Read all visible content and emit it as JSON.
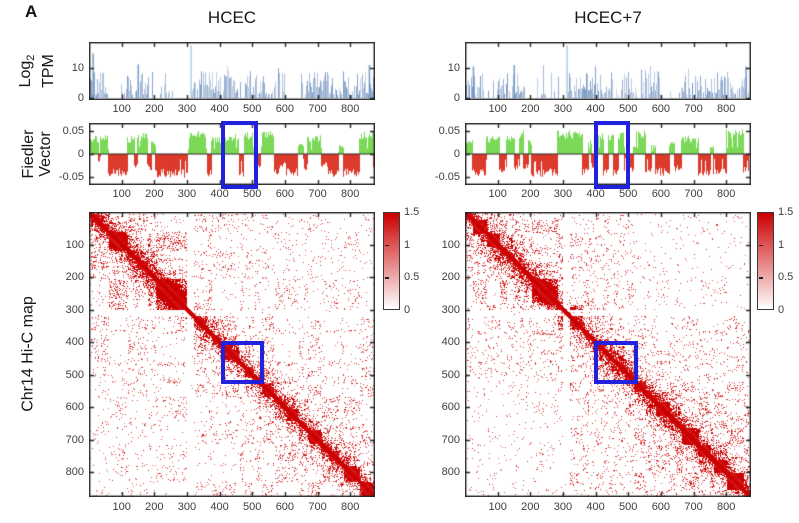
{
  "panel_label": "A",
  "columns": [
    {
      "title": "HCEC"
    },
    {
      "title": "HCEC+7"
    }
  ],
  "row_labels": {
    "tpm": {
      "line1": "Log",
      "line1_sub": "2",
      "line2": "TPM"
    },
    "fiedler": {
      "line1": "Fiedler",
      "line2": "Vector"
    },
    "hic": {
      "label": "Chr14 Hi-C map"
    }
  },
  "colors": {
    "bar_blue": "#5E8FC6",
    "bar_blue_light": "#ADCDE6",
    "fiedler_positive": "#7BD957",
    "fiedler_negative": "#DC3A2B",
    "hic_red": "#CB0000",
    "highlight_blue": "#2222DE",
    "axis": "#262626",
    "tick_text": "#3D3D3D"
  },
  "chart_data": [
    {
      "id": "tpm_hcec",
      "type": "bar",
      "title": "HCEC",
      "ylabel": "Log2 TPM",
      "xlim": [
        0,
        876
      ],
      "ylim": [
        0,
        18
      ],
      "x_ticks": [
        100,
        200,
        300,
        400,
        500,
        600,
        700,
        800
      ],
      "y_ticks": [
        0,
        10
      ],
      "bar_color": "#5E8FC6",
      "seed": 101,
      "sparse_regions": [
        [
          57,
          97
        ],
        [
          186,
          216
        ],
        [
          248,
          310
        ],
        [
          452,
          475
        ],
        [
          598,
          648
        ]
      ],
      "tall_spikes": [
        [
          12,
          14.8
        ],
        [
          150,
          11.2
        ],
        [
          312,
          17.5
        ],
        [
          858,
          11
        ]
      ]
    },
    {
      "id": "tpm_hcec7",
      "type": "bar",
      "title": "HCEC+7",
      "ylabel": "Log2 TPM",
      "xlim": [
        0,
        876
      ],
      "ylim": [
        0,
        18
      ],
      "x_ticks": [
        100,
        200,
        300,
        400,
        500,
        600,
        700,
        800
      ],
      "y_ticks": [
        0,
        10
      ],
      "bar_color": "#5E8FC6",
      "seed": 102,
      "sparse_regions": [
        [
          57,
          97
        ],
        [
          186,
          216
        ],
        [
          248,
          310
        ],
        [
          452,
          475
        ],
        [
          598,
          648
        ]
      ],
      "tall_spikes": [
        [
          25,
          10.5
        ],
        [
          150,
          11
        ],
        [
          312,
          17.5
        ],
        [
          860,
          10.5
        ]
      ]
    },
    {
      "id": "fiedler_hcec",
      "type": "area",
      "title": "HCEC",
      "ylabel": "Fiedler Vector",
      "xlim": [
        0,
        876
      ],
      "ylim": [
        -0.068,
        0.068
      ],
      "x_ticks": [
        100,
        200,
        300,
        400,
        500,
        600,
        700,
        800
      ],
      "y_ticks": [
        -0.05,
        0,
        0.05
      ],
      "pos_color": "#7BD957",
      "neg_color": "#DC3A2B",
      "seed": 201,
      "highlight_x": [
        405,
        519
      ],
      "segments": [
        [
          6,
          28,
          0.04
        ],
        [
          28,
          36,
          -0.018
        ],
        [
          36,
          60,
          0.045
        ],
        [
          60,
          117,
          -0.05
        ],
        [
          119,
          139,
          0.04
        ],
        [
          139,
          150,
          -0.03
        ],
        [
          150,
          178,
          0.046
        ],
        [
          178,
          190,
          -0.035
        ],
        [
          190,
          203,
          0.028
        ],
        [
          205,
          303,
          -0.052
        ],
        [
          306,
          360,
          0.05
        ],
        [
          362,
          374,
          -0.05
        ],
        [
          376,
          403,
          0.038
        ],
        [
          405,
          458,
          0.044
        ],
        [
          460,
          473,
          -0.05
        ],
        [
          475,
          505,
          0.048
        ],
        [
          507,
          526,
          -0.035
        ],
        [
          528,
          566,
          0.05
        ],
        [
          567,
          584,
          -0.05
        ],
        [
          584,
          605,
          -0.028
        ],
        [
          605,
          640,
          -0.05
        ],
        [
          641,
          656,
          0.025
        ],
        [
          656,
          668,
          -0.035
        ],
        [
          669,
          711,
          0.042
        ],
        [
          711,
          733,
          -0.028
        ],
        [
          733,
          765,
          -0.05
        ],
        [
          765,
          780,
          0.02
        ],
        [
          780,
          828,
          -0.05
        ],
        [
          828,
          872,
          0.05
        ],
        [
          872,
          876,
          -0.04
        ]
      ]
    },
    {
      "id": "fiedler_hcec7",
      "type": "area",
      "title": "HCEC+7",
      "ylabel": "Fiedler Vector",
      "xlim": [
        0,
        876
      ],
      "ylim": [
        -0.068,
        0.068
      ],
      "x_ticks": [
        100,
        200,
        300,
        400,
        500,
        600,
        700,
        800
      ],
      "y_ticks": [
        -0.05,
        0,
        0.05
      ],
      "pos_color": "#7BD957",
      "neg_color": "#DC3A2B",
      "seed": 202,
      "highlight_x": [
        396,
        506
      ],
      "segments": [
        [
          5,
          22,
          0.035
        ],
        [
          22,
          67,
          -0.05
        ],
        [
          67,
          107,
          0.04
        ],
        [
          107,
          127,
          -0.04
        ],
        [
          127,
          152,
          0.045
        ],
        [
          152,
          166,
          -0.04
        ],
        [
          166,
          178,
          0.052
        ],
        [
          178,
          193,
          -0.035
        ],
        [
          193,
          203,
          0.03
        ],
        [
          203,
          283,
          -0.05
        ],
        [
          283,
          360,
          0.052
        ],
        [
          360,
          377,
          -0.05
        ],
        [
          377,
          388,
          0.035
        ],
        [
          388,
          398,
          -0.03
        ],
        [
          398,
          424,
          0.048
        ],
        [
          424,
          439,
          -0.05
        ],
        [
          439,
          455,
          0.048
        ],
        [
          455,
          470,
          -0.05
        ],
        [
          470,
          490,
          0.048
        ],
        [
          490,
          517,
          -0.04
        ],
        [
          517,
          552,
          0.052
        ],
        [
          552,
          572,
          -0.042
        ],
        [
          572,
          584,
          0.02
        ],
        [
          584,
          627,
          -0.048
        ],
        [
          627,
          642,
          0.028
        ],
        [
          642,
          662,
          -0.04
        ],
        [
          662,
          716,
          0.04
        ],
        [
          716,
          752,
          -0.048
        ],
        [
          752,
          762,
          0.02
        ],
        [
          762,
          802,
          -0.046
        ],
        [
          802,
          852,
          0.056
        ],
        [
          852,
          868,
          -0.045
        ]
      ]
    },
    {
      "id": "hic_hcec",
      "type": "heatmap",
      "title": "HCEC",
      "ylabel": "Chr14 Hi-C map",
      "xlim": [
        0,
        876
      ],
      "ylim": [
        0,
        876
      ],
      "x_ticks": [
        100,
        200,
        300,
        400,
        500,
        600,
        700,
        800
      ],
      "y_ticks": [
        100,
        200,
        300,
        400,
        500,
        600,
        700,
        800
      ],
      "clim": [
        0,
        1.5
      ],
      "colorbar_ticks": [
        0,
        0.5,
        1,
        1.5
      ],
      "cmap": [
        "#FFFFFF",
        "#CB0000"
      ],
      "seed": 301,
      "fiedler_ref": "fiedler_hcec",
      "white_bands": [
        [
          300,
          318
        ]
      ],
      "quads": [
        [
          0,
          300,
          0,
          300,
          1.6
        ],
        [
          520,
          876,
          520,
          876,
          1.25
        ],
        [
          0,
          300,
          520,
          876,
          0.85
        ],
        [
          390,
          520,
          390,
          520,
          1.1
        ]
      ],
      "highlight": {
        "x": [
          405,
          525
        ],
        "y": [
          398,
          515
        ]
      }
    },
    {
      "id": "hic_hcec7",
      "type": "heatmap",
      "title": "HCEC+7",
      "ylabel": "Chr14 Hi-C map",
      "xlim": [
        0,
        876
      ],
      "ylim": [
        0,
        876
      ],
      "x_ticks": [
        100,
        200,
        300,
        400,
        500,
        600,
        700,
        800
      ],
      "y_ticks": [
        100,
        200,
        300,
        400,
        500,
        600,
        700,
        800
      ],
      "clim": [
        0,
        1.5
      ],
      "colorbar_ticks": [
        0,
        0.5,
        1,
        1.5
      ],
      "cmap": [
        "#FFFFFF",
        "#CB0000"
      ],
      "seed": 302,
      "fiedler_ref": "fiedler_hcec7",
      "white_bands": [
        [
          300,
          318
        ]
      ],
      "quads": [
        [
          0,
          300,
          0,
          300,
          1.5
        ],
        [
          520,
          876,
          520,
          876,
          1.55
        ],
        [
          0,
          300,
          520,
          876,
          0.45
        ],
        [
          390,
          520,
          390,
          520,
          1.6
        ]
      ],
      "highlight": {
        "x": [
          396,
          518
        ],
        "y": [
          398,
          515
        ]
      }
    }
  ]
}
